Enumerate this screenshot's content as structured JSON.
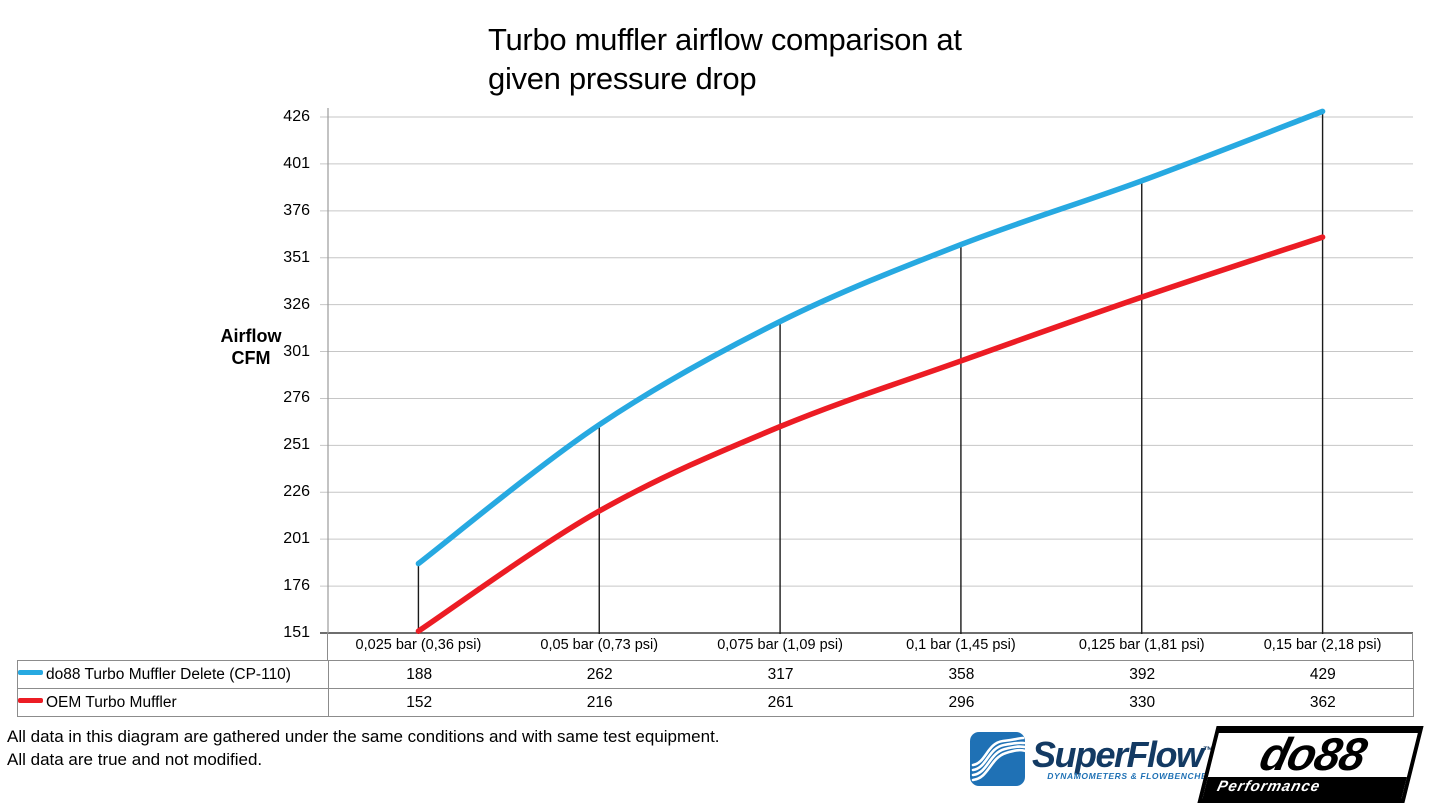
{
  "title": {
    "line1": "Turbo muffler airflow comparison at",
    "line2": "given pressure drop"
  },
  "y_axis": {
    "label_line1": "Airflow",
    "label_line2": "CFM"
  },
  "chart_data": {
    "type": "line",
    "title": "Turbo muffler airflow comparison at given pressure drop",
    "categories": [
      "0,025 bar (0,36 psi)",
      "0,05 bar (0,73 psi)",
      "0,075 bar (1,09 psi)",
      "0,1 bar (1,45 psi)",
      "0,125 bar (1,81 psi)",
      "0,15 bar (2,18 psi)"
    ],
    "series": [
      {
        "name": "do88 Turbo Muffler Delete (CP-110)",
        "color": "#27A9E1",
        "values": [
          188,
          262,
          317,
          358,
          392,
          429
        ]
      },
      {
        "name": "OEM Turbo Muffler",
        "color": "#EC1C24",
        "values": [
          152,
          216,
          261,
          296,
          330,
          362
        ]
      }
    ],
    "ylabel": "Airflow CFM",
    "xlabel": "",
    "yticks": [
      151,
      176,
      201,
      226,
      251,
      276,
      301,
      326,
      351,
      376,
      401,
      426
    ],
    "ylim": [
      151,
      426
    ],
    "grid": "horizontal",
    "drop_lines": true,
    "line_smoothing": true,
    "legend_position": "data-table-left",
    "colors": {
      "gridline": "#C6C6C6",
      "axis": "#9B9B9B",
      "axis_bottom": "#3F3F3F",
      "drop_line": "#1A1A1A",
      "table_border": "#8C8C8C"
    }
  },
  "footer": {
    "line1": "All data in this diagram are gathered under the same conditions and with same test equipment.",
    "line2": "All data are true and not modified."
  },
  "logos": {
    "superflow": {
      "name": "SuperFlow",
      "tm": "™",
      "tagline": "DYNAMOMETERS & FLOWBENCHES",
      "brand_blue": "#1F71B5",
      "brand_navy": "#133A63"
    },
    "do88": {
      "name": "do88",
      "sub": "Performance"
    }
  }
}
